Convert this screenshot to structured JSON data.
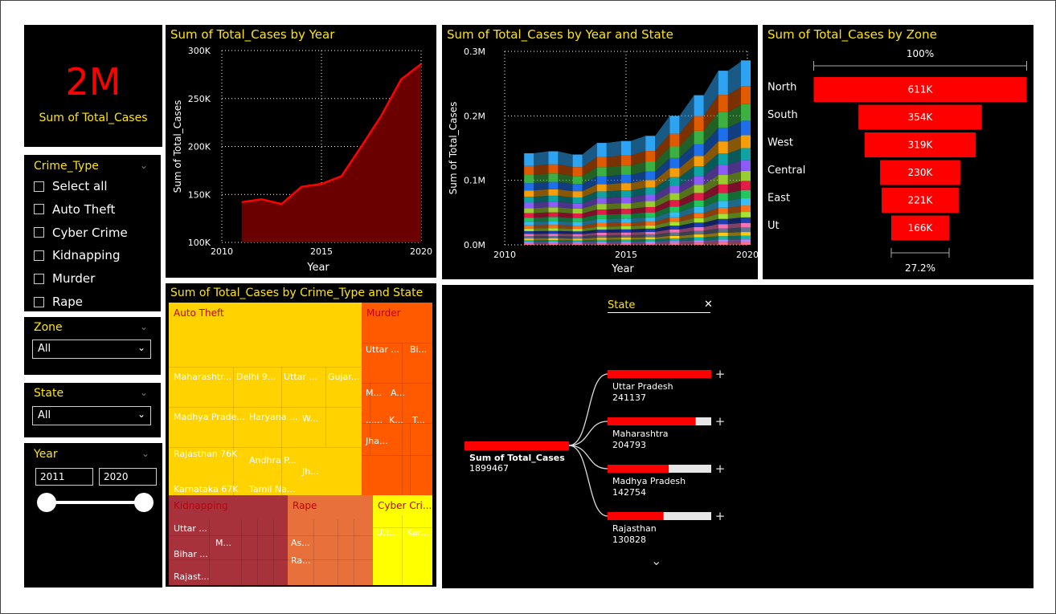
{
  "kpi": {
    "value": "2M",
    "label": "Sum of Total_Cases",
    "color": "#ff0000"
  },
  "slicers": {
    "crime_type": {
      "title": "Crime_Type",
      "options": [
        "Select all",
        "Auto Theft",
        "Cyber Crime",
        "Kidnapping",
        "Murder",
        "Rape"
      ]
    },
    "zone": {
      "title": "Zone",
      "value": "All"
    },
    "state": {
      "title": "State",
      "value": "All"
    },
    "year": {
      "title": "Year",
      "from": "2011",
      "to": "2020"
    }
  },
  "chart_data": [
    {
      "type": "area",
      "title": "Sum of Total_Cases by Year",
      "xlabel": "Year",
      "ylabel": "Sum of Total_Cases",
      "x": [
        2011,
        2012,
        2013,
        2014,
        2015,
        2016,
        2017,
        2018,
        2019,
        2020
      ],
      "values": [
        142000,
        145000,
        140000,
        158000,
        161000,
        169000,
        200000,
        232000,
        270000,
        286000
      ],
      "xticks": [
        "2010",
        "2015",
        "2020"
      ],
      "yticks": [
        "100K",
        "150K",
        "200K",
        "250K",
        "300K"
      ],
      "ylim": [
        100000,
        300000
      ],
      "grid": true,
      "color": "#ff0000"
    },
    {
      "type": "area",
      "title": "Sum of Total_Cases by Year and State",
      "xlabel": "Year",
      "ylabel": "Sum of Total_Cases",
      "stacked": true,
      "x": [
        2011,
        2012,
        2013,
        2014,
        2015,
        2016,
        2017,
        2018,
        2019,
        2020
      ],
      "totals": [
        142000,
        145000,
        140000,
        158000,
        161000,
        169000,
        200000,
        232000,
        270000,
        286000
      ],
      "xticks": [
        "2010",
        "2015",
        "2020"
      ],
      "yticks": [
        "0.0M",
        "0.1M",
        "0.2M",
        "0.3M"
      ],
      "ylim": [
        0,
        300000
      ],
      "grid": true,
      "palette": [
        "#2ea3f2",
        "#e05a00",
        "#3cb043",
        "#1f6feb",
        "#f59e0b",
        "#0fa3a3",
        "#8b5cf6",
        "#9acd32",
        "#e11d48",
        "#22c55e",
        "#38bdf8",
        "#f97316",
        "#a3e635",
        "#1e40af",
        "#f472b6",
        "#64748b",
        "#facc15",
        "#14b8a6",
        "#c084fc",
        "#fb7185"
      ]
    },
    {
      "type": "funnel",
      "title": "Sum of Total_Cases by Zone",
      "categories": [
        "North",
        "South",
        "West",
        "Central",
        "East",
        "Ut"
      ],
      "values": [
        611000,
        354000,
        319000,
        230000,
        221000,
        166000
      ],
      "labels": [
        "611K",
        "354K",
        "319K",
        "230K",
        "221K",
        "166K"
      ],
      "top_pct": "100%",
      "bottom_pct": "27.2%",
      "color": "#ff0000"
    },
    {
      "type": "treemap",
      "title": "Sum of Total_Cases by Crime_Type and State",
      "groups": [
        {
          "name": "Auto Theft",
          "color": "#ffd200"
        },
        {
          "name": "Murder",
          "color": "#ff5a00"
        },
        {
          "name": "Kidnapping",
          "color": "#a8323c"
        },
        {
          "name": "Rape",
          "color": "#e8703a"
        },
        {
          "name": "Cyber Cri...",
          "color": "#ffff00"
        }
      ],
      "leaf_labels": [
        "Maharashtr...",
        "Delhi 9...",
        "Uttar ...",
        "Gujar...",
        "Madhya Prade...",
        "Haryana ...",
        "W...",
        "Rajasthan 76K",
        "Andhra P...",
        "Jh...",
        "Karnataka 67K",
        "Tamil Na...",
        "Uttar ...",
        "Bi...",
        "M...",
        "A...",
        "......",
        "K...",
        "T...",
        "Jha...",
        "Uttar ...",
        "M...",
        "Bihar ...",
        "Rajast...",
        "As...",
        "Ra...",
        "Utt...",
        "Kar..."
      ]
    },
    {
      "type": "decomposition_tree",
      "header": "State",
      "root": {
        "label": "Sum of Total_Cases",
        "value": "1899467"
      },
      "nodes": [
        {
          "name": "Uttar Pradesh",
          "value": "241137",
          "fraction": 1.0
        },
        {
          "name": "Maharashtra",
          "value": "204793",
          "fraction": 0.85
        },
        {
          "name": "Madhya Pradesh",
          "value": "142754",
          "fraction": 0.59
        },
        {
          "name": "Rajasthan",
          "value": "130828",
          "fraction": 0.54
        }
      ],
      "expand_glyph": "+"
    }
  ]
}
